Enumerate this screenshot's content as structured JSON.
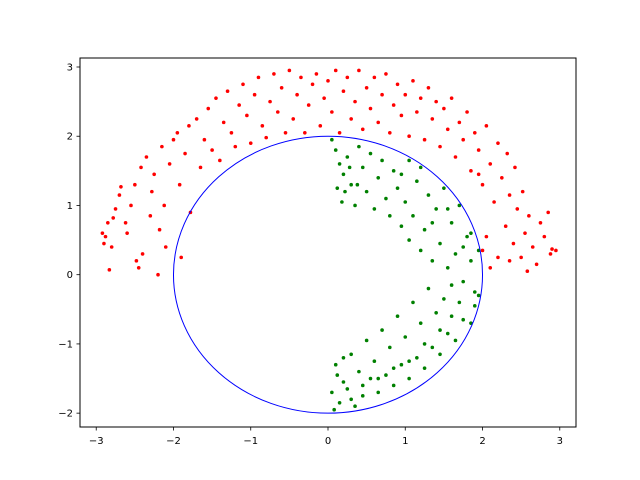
{
  "chart_data": {
    "type": "scatter",
    "title": "",
    "xlabel": "",
    "ylabel": "",
    "xlim": [
      -3.21,
      3.21
    ],
    "ylim": [
      -2.2,
      3.13
    ],
    "xticks": [
      -3,
      -2,
      -1,
      0,
      1,
      2,
      3
    ],
    "yticks": [
      -2,
      -1,
      0,
      1,
      2,
      3
    ],
    "xtick_labels": [
      "−3",
      "−2",
      "−1",
      "0",
      "1",
      "2",
      "3"
    ],
    "ytick_labels": [
      "−2",
      "−1",
      "0",
      "1",
      "2",
      "3"
    ],
    "grid": false,
    "legend": "none",
    "circle": {
      "center": [
        0,
        0
      ],
      "radius": 2,
      "color": "#0000ff"
    },
    "series": [
      {
        "color": "#ff0000",
        "region": "upper ring band outside circle",
        "points": [
          [
            -2.9,
            0.45
          ],
          [
            -2.92,
            0.6
          ],
          [
            -2.85,
            0.75
          ],
          [
            -2.88,
            0.55
          ],
          [
            -2.8,
            0.4
          ],
          [
            -2.78,
            0.82
          ],
          [
            -2.75,
            0.95
          ],
          [
            -2.83,
            0.07
          ],
          [
            -2.7,
            1.15
          ],
          [
            -2.68,
            1.27
          ],
          [
            -2.6,
            0.6
          ],
          [
            -2.62,
            0.75
          ],
          [
            -2.55,
            1.0
          ],
          [
            -2.5,
            1.3
          ],
          [
            -2.48,
            0.2
          ],
          [
            -2.45,
            0.1
          ],
          [
            -2.4,
            0.3
          ],
          [
            -2.42,
            1.55
          ],
          [
            -2.35,
            1.7
          ],
          [
            -2.3,
            0.85
          ],
          [
            -2.28,
            1.2
          ],
          [
            -2.25,
            1.45
          ],
          [
            -2.2,
            0.0
          ],
          [
            -2.18,
            0.65
          ],
          [
            -2.15,
            1.85
          ],
          [
            -2.12,
            1.0
          ],
          [
            -2.1,
            0.4
          ],
          [
            -2.05,
            1.6
          ],
          [
            -2.0,
            1.95
          ],
          [
            -1.95,
            2.05
          ],
          [
            -1.92,
            1.3
          ],
          [
            -1.9,
            0.25
          ],
          [
            -1.85,
            1.75
          ],
          [
            -1.8,
            2.15
          ],
          [
            -1.78,
            0.9
          ],
          [
            -1.7,
            2.25
          ],
          [
            -1.65,
            1.55
          ],
          [
            -1.6,
            1.95
          ],
          [
            -1.55,
            2.4
          ],
          [
            -1.5,
            1.8
          ],
          [
            -1.45,
            2.55
          ],
          [
            -1.4,
            1.65
          ],
          [
            -1.35,
            2.2
          ],
          [
            -1.3,
            2.65
          ],
          [
            -1.25,
            2.05
          ],
          [
            -1.2,
            1.85
          ],
          [
            -1.15,
            2.45
          ],
          [
            -1.1,
            2.75
          ],
          [
            -1.05,
            2.3
          ],
          [
            -1.0,
            1.9
          ],
          [
            -0.95,
            2.6
          ],
          [
            -0.9,
            2.85
          ],
          [
            -0.85,
            2.15
          ],
          [
            -0.8,
            1.98
          ],
          [
            -0.75,
            2.5
          ],
          [
            -0.7,
            2.9
          ],
          [
            -0.65,
            2.35
          ],
          [
            -0.6,
            2.7
          ],
          [
            -0.55,
            2.05
          ],
          [
            -0.5,
            2.95
          ],
          [
            -0.45,
            2.25
          ],
          [
            -0.4,
            2.6
          ],
          [
            -0.35,
            2.85
          ],
          [
            -0.3,
            2.05
          ],
          [
            -0.25,
            2.45
          ],
          [
            -0.2,
            2.75
          ],
          [
            -0.15,
            2.9
          ],
          [
            -0.1,
            2.15
          ],
          [
            -0.05,
            2.55
          ],
          [
            0.0,
            2.8
          ],
          [
            0.05,
            2.35
          ],
          [
            0.1,
            2.95
          ],
          [
            0.15,
            2.05
          ],
          [
            0.2,
            2.65
          ],
          [
            0.25,
            2.85
          ],
          [
            0.3,
            2.25
          ],
          [
            0.35,
            2.5
          ],
          [
            0.4,
            2.95
          ],
          [
            0.45,
            2.1
          ],
          [
            0.5,
            2.7
          ],
          [
            0.55,
            2.4
          ],
          [
            0.6,
            2.85
          ],
          [
            0.65,
            2.2
          ],
          [
            0.7,
            2.6
          ],
          [
            0.75,
            2.9
          ],
          [
            0.8,
            2.05
          ],
          [
            0.85,
            2.45
          ],
          [
            0.9,
            2.75
          ],
          [
            0.95,
            2.3
          ],
          [
            1.0,
            2.6
          ],
          [
            1.05,
            2.0
          ],
          [
            1.1,
            2.8
          ],
          [
            1.15,
            2.35
          ],
          [
            1.2,
            2.55
          ],
          [
            1.25,
            1.95
          ],
          [
            1.3,
            2.7
          ],
          [
            1.35,
            2.25
          ],
          [
            1.4,
            2.5
          ],
          [
            1.45,
            1.85
          ],
          [
            1.5,
            2.4
          ],
          [
            1.55,
            2.1
          ],
          [
            1.6,
            2.55
          ],
          [
            1.65,
            1.7
          ],
          [
            1.7,
            2.2
          ],
          [
            1.75,
            1.95
          ],
          [
            1.8,
            2.35
          ],
          [
            1.85,
            1.5
          ],
          [
            1.9,
            2.05
          ],
          [
            1.95,
            1.8
          ],
          [
            2.0,
            1.3
          ],
          [
            2.05,
            2.15
          ],
          [
            2.1,
            1.6
          ],
          [
            2.15,
            1.05
          ],
          [
            2.2,
            1.9
          ],
          [
            2.25,
            1.4
          ],
          [
            2.3,
            0.7
          ],
          [
            2.32,
            1.75
          ],
          [
            2.35,
            1.15
          ],
          [
            2.4,
            0.45
          ],
          [
            2.42,
            1.55
          ],
          [
            2.45,
            0.95
          ],
          [
            2.5,
            0.25
          ],
          [
            2.52,
            1.2
          ],
          [
            2.55,
            0.6
          ],
          [
            2.58,
            0.05
          ],
          [
            2.6,
            0.85
          ],
          [
            2.65,
            0.4
          ],
          [
            2.7,
            0.15
          ],
          [
            2.75,
            0.75
          ],
          [
            2.8,
            0.55
          ],
          [
            2.85,
            0.9
          ],
          [
            2.88,
            0.3
          ],
          [
            2.9,
            0.37
          ],
          [
            2.95,
            0.35
          ],
          [
            2.0,
            0.35
          ],
          [
            2.1,
            0.1
          ],
          [
            2.2,
            0.25
          ],
          [
            2.05,
            0.55
          ],
          [
            1.95,
            1.45
          ],
          [
            2.35,
            0.2
          ]
        ]
      },
      {
        "color": "#008000",
        "region": "right half-ring inside circle",
        "points": [
          [
            0.05,
            1.95
          ],
          [
            0.1,
            1.8
          ],
          [
            0.15,
            1.6
          ],
          [
            0.2,
            1.45
          ],
          [
            0.12,
            1.25
          ],
          [
            0.18,
            1.05
          ],
          [
            0.25,
            1.7
          ],
          [
            0.3,
            1.3
          ],
          [
            0.35,
            1.0
          ],
          [
            0.4,
            1.85
          ],
          [
            0.45,
            1.55
          ],
          [
            0.5,
            1.2
          ],
          [
            0.55,
            1.75
          ],
          [
            0.6,
            0.95
          ],
          [
            0.65,
            1.4
          ],
          [
            0.7,
            1.65
          ],
          [
            0.75,
            1.1
          ],
          [
            0.8,
            0.85
          ],
          [
            0.85,
            1.5
          ],
          [
            0.9,
            1.25
          ],
          [
            0.95,
            0.7
          ],
          [
            1.0,
            1.05
          ],
          [
            1.05,
            0.5
          ],
          [
            1.1,
            0.85
          ],
          [
            1.15,
            1.35
          ],
          [
            1.2,
            0.35
          ],
          [
            1.25,
            0.65
          ],
          [
            1.3,
            1.15
          ],
          [
            1.35,
            0.2
          ],
          [
            1.4,
            0.95
          ],
          [
            1.45,
            0.45
          ],
          [
            1.5,
            1.25
          ],
          [
            1.55,
            0.1
          ],
          [
            1.6,
            0.75
          ],
          [
            1.65,
            0.3
          ],
          [
            1.7,
            1.0
          ],
          [
            1.75,
            -0.1
          ],
          [
            1.8,
            0.55
          ],
          [
            1.85,
            0.2
          ],
          [
            1.9,
            -0.25
          ],
          [
            1.95,
            0.35
          ],
          [
            1.7,
            -0.4
          ],
          [
            1.6,
            -0.15
          ],
          [
            1.5,
            -0.35
          ],
          [
            1.4,
            -0.55
          ],
          [
            1.3,
            -0.2
          ],
          [
            1.2,
            -0.7
          ],
          [
            1.1,
            -0.4
          ],
          [
            1.0,
            -0.9
          ],
          [
            0.9,
            -0.6
          ],
          [
            0.8,
            -1.05
          ],
          [
            0.7,
            -0.8
          ],
          [
            0.6,
            -1.25
          ],
          [
            0.5,
            -0.95
          ],
          [
            0.4,
            -1.4
          ],
          [
            0.3,
            -1.15
          ],
          [
            0.2,
            -1.55
          ],
          [
            0.1,
            -1.3
          ],
          [
            0.05,
            -1.7
          ],
          [
            0.15,
            -1.85
          ],
          [
            0.25,
            -1.65
          ],
          [
            0.35,
            -1.9
          ],
          [
            0.45,
            -1.75
          ],
          [
            0.55,
            -1.5
          ],
          [
            0.65,
            -1.7
          ],
          [
            0.75,
            -1.45
          ],
          [
            0.85,
            -1.6
          ],
          [
            0.95,
            -1.3
          ],
          [
            1.05,
            -1.5
          ],
          [
            1.15,
            -1.2
          ],
          [
            1.25,
            -1.35
          ],
          [
            1.35,
            -1.05
          ],
          [
            1.45,
            -1.15
          ],
          [
            1.55,
            -0.85
          ],
          [
            1.65,
            -0.95
          ],
          [
            1.75,
            -0.65
          ],
          [
            1.85,
            -0.7
          ],
          [
            1.9,
            -0.45
          ],
          [
            1.95,
            -0.3
          ],
          [
            0.08,
            -1.95
          ],
          [
            1.05,
            1.65
          ],
          [
            0.95,
            1.45
          ],
          [
            1.2,
            1.55
          ],
          [
            1.35,
            0.75
          ],
          [
            1.55,
            0.95
          ],
          [
            1.75,
            0.4
          ],
          [
            1.85,
            0.6
          ],
          [
            1.6,
            -0.6
          ],
          [
            1.45,
            -0.8
          ],
          [
            1.25,
            -1.0
          ],
          [
            1.05,
            -1.25
          ],
          [
            0.85,
            -1.35
          ],
          [
            0.65,
            -1.5
          ],
          [
            0.45,
            -1.6
          ],
          [
            0.3,
            -1.8
          ],
          [
            0.2,
            -1.2
          ],
          [
            0.12,
            -1.45
          ],
          [
            0.22,
            1.2
          ],
          [
            0.28,
            1.55
          ],
          [
            0.38,
            1.3
          ]
        ]
      }
    ]
  }
}
